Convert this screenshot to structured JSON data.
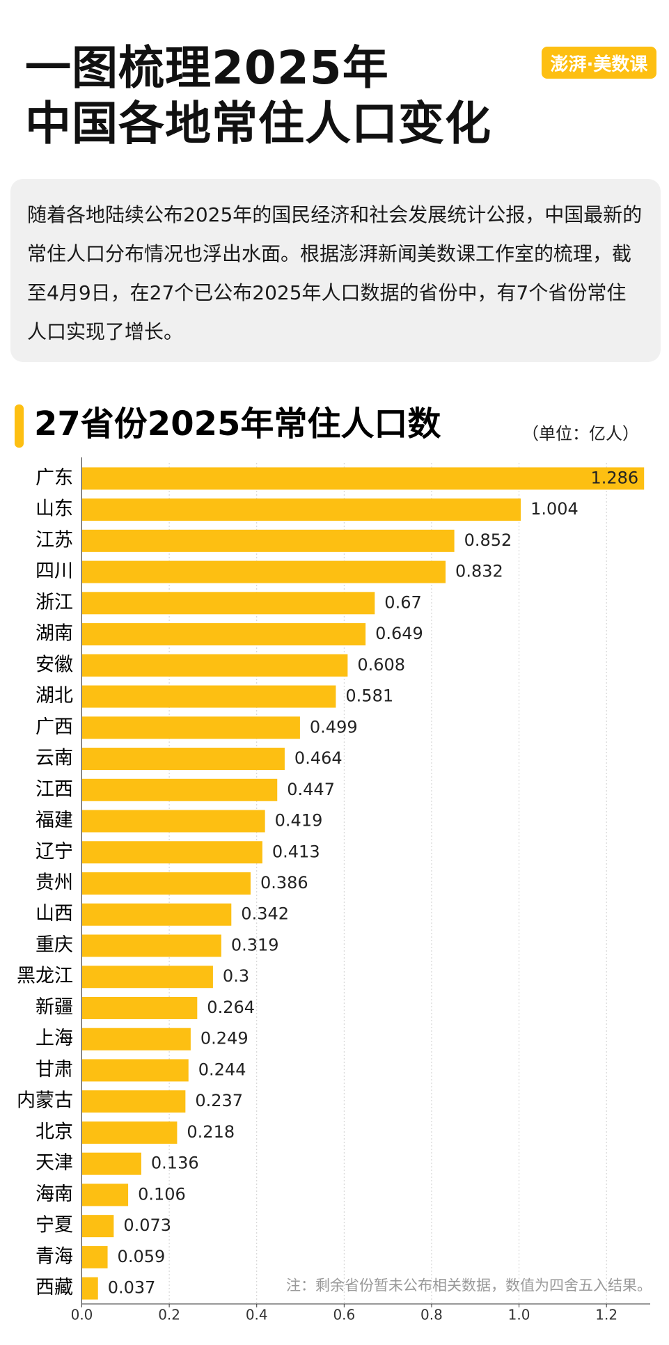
{
  "header": {
    "title_lines": [
      "一图梳理2025年",
      "中国各地常住人口变化"
    ],
    "logo": "澎湃·美数课"
  },
  "intro": "随着各地陆续公布2025年的国民经济和社会发展统计公报，中国最新的常住人口分布情况也浮出水面。根据澎湃新闻美数课工作室的梳理，截至4月9日，在27个已公布2025年人口数据的省份中，有7个省份常住人口实现了增长。",
  "chart_data": {
    "type": "bar",
    "orientation": "horizontal",
    "title": "27省份2025年常住人口数",
    "unit": "（单位：亿人）",
    "categories": [
      "广东",
      "山东",
      "江苏",
      "四川",
      "浙江",
      "湖南",
      "安徽",
      "湖北",
      "广西",
      "云南",
      "江西",
      "福建",
      "辽宁",
      "贵州",
      "山西",
      "重庆",
      "黑龙江",
      "新疆",
      "上海",
      "甘肃",
      "内蒙古",
      "北京",
      "天津",
      "海南",
      "宁夏",
      "青海",
      "西藏"
    ],
    "values": [
      1.286,
      1.004,
      0.852,
      0.832,
      0.67,
      0.649,
      0.608,
      0.581,
      0.499,
      0.464,
      0.447,
      0.419,
      0.413,
      0.386,
      0.342,
      0.319,
      0.3,
      0.264,
      0.249,
      0.244,
      0.237,
      0.218,
      0.136,
      0.106,
      0.073,
      0.059,
      0.037
    ],
    "color": "#FDBF12",
    "xlim": [
      0,
      1.3
    ],
    "xticks": [
      {
        "value": 0,
        "label": "0.0"
      },
      0.2,
      0.4,
      0.6,
      0.8,
      {
        "value": 1,
        "label": "1.0"
      },
      1.2
    ],
    "grid": true,
    "note": "注：剩余省份暂未公布相关数据，数值为四舍五入结果。"
  }
}
